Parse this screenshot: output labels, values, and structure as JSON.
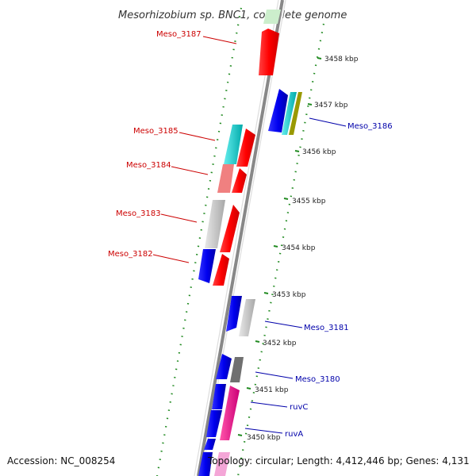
{
  "title": "Mesorhizobium sp. BNC1, complete genome",
  "accession": "Accession: NC_008254",
  "topology": "Topology: circular; Length: 4,412,446 bp; Genes: 4,131",
  "kbp_labels": [
    "3458 kbp",
    "3457 kbp",
    "3456 kbp",
    "3455 kbp",
    "3454 kbp",
    "3453 kbp",
    "3452 kbp",
    "3451 kbp",
    "3450 kbp"
  ],
  "genes_left": [
    "Meso_3187",
    "Meso_3185",
    "Meso_3184",
    "Meso_3183",
    "Meso_3182"
  ],
  "genes_right": [
    "Meso_3186",
    "Meso_3181",
    "Meso_3180",
    "ruvC",
    "ruvA"
  ],
  "colors": {
    "red": "#ff0000",
    "blue": "#0000ee",
    "cyan": "#00cccc",
    "olive": "#999900",
    "salmon": "#f08080",
    "grey": "#c8c8c8",
    "darkgrey": "#707070",
    "magenta": "#ff1493",
    "pink": "#f4a6d7",
    "green": "#228b22",
    "backbone": "#888888"
  }
}
